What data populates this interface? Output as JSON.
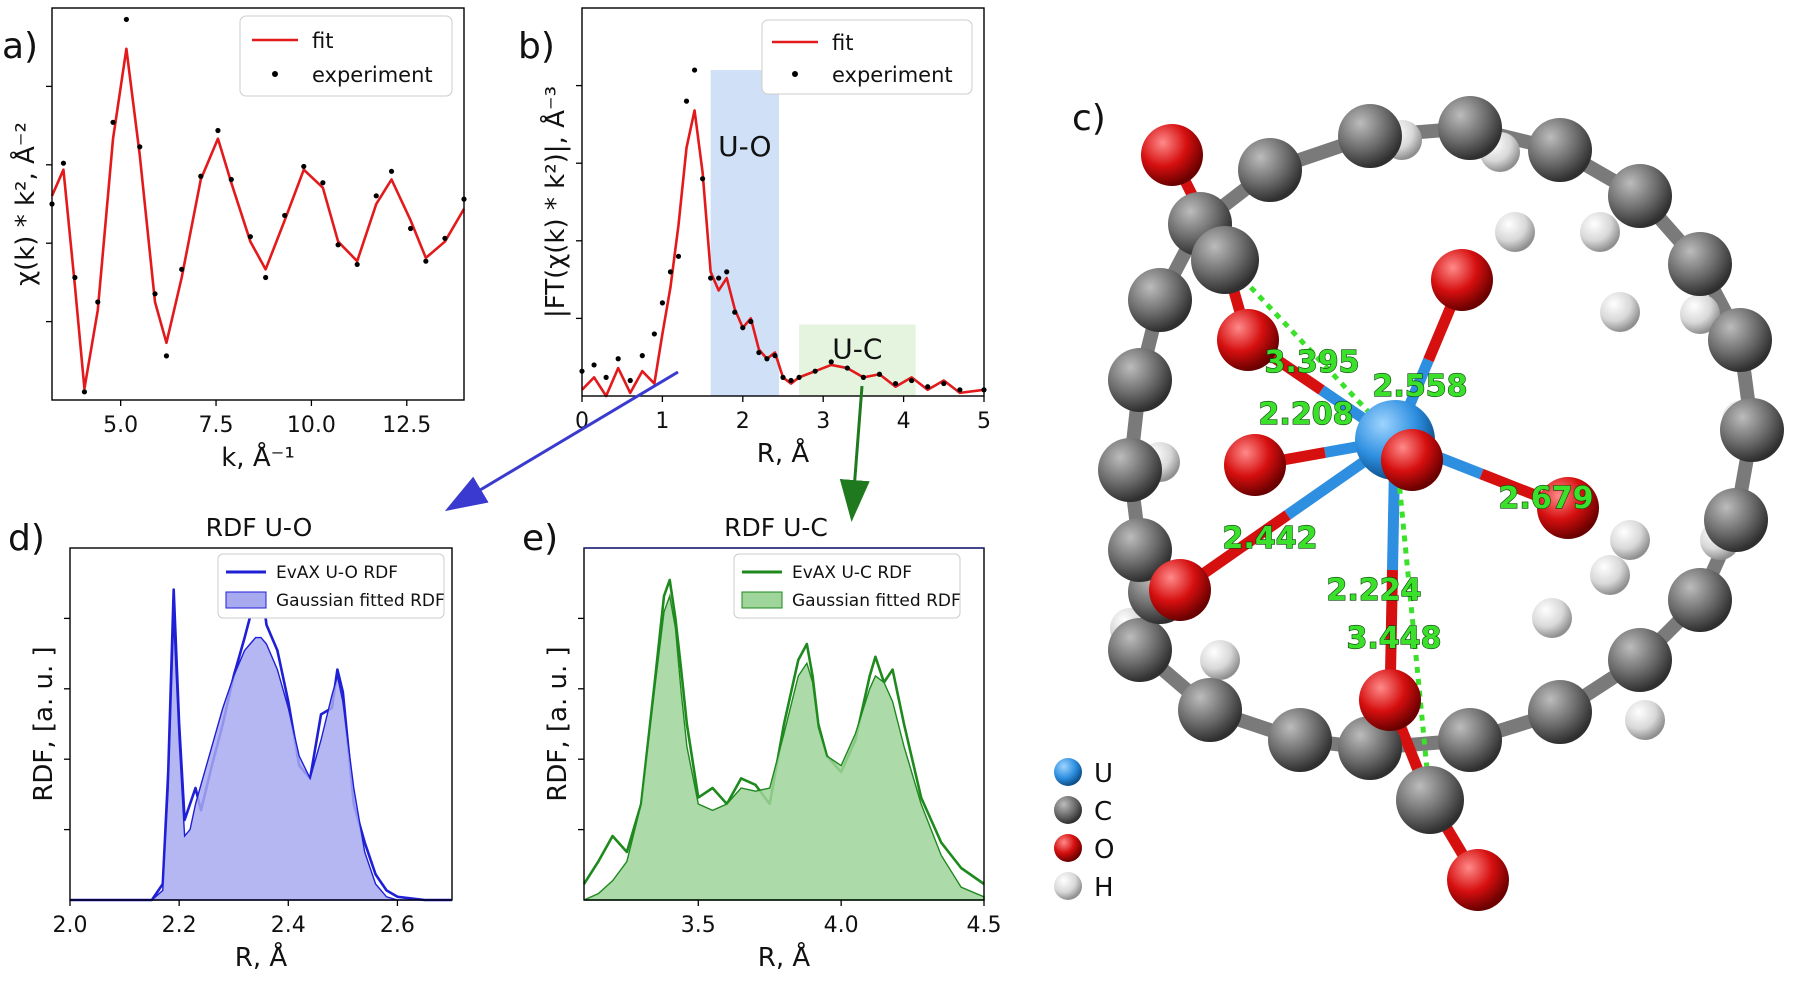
{
  "colors": {
    "fit": "#e31a1c",
    "experiment": "#000000",
    "uo": "#1f1fd6",
    "uo_fill": "#a8aaf0",
    "uc": "#1e8a1e",
    "uc_fill": "#9fd49a",
    "shade_uo": "#cfe0f7",
    "shade_uc": "#e4f4df",
    "arrow_uo": "#3a3ad0",
    "arrow_uc": "#1f7a1f",
    "atom_U": "#2e8fe0",
    "atom_C": "#6a6a6a",
    "atom_O": "#d60f0f",
    "atom_H": "#dcdcdc",
    "distance_label": "#3be02a"
  },
  "panels": {
    "a": {
      "label": "a)"
    },
    "b": {
      "label": "b)"
    },
    "c": {
      "label": "c)"
    },
    "d": {
      "label": "d)"
    },
    "e": {
      "label": "e)"
    }
  },
  "chart_data": [
    {
      "id": "a",
      "type": "line",
      "xlabel": "k, Å⁻¹",
      "ylabel": "χ(k) * k², Å⁻²",
      "xlim": [
        3.2,
        14.0
      ],
      "ylim": [
        -1.15,
        1.25
      ],
      "xticks": [
        5.0,
        7.5,
        10.0,
        12.5
      ],
      "xtick_labels": [
        "5.0",
        "7.5",
        "10.0",
        "12.5"
      ],
      "ytick_labels_shown": false,
      "legend": {
        "placement": "top-right",
        "entries": [
          "fit",
          "experiment"
        ]
      },
      "series": [
        {
          "name": "fit",
          "style": "line",
          "x": [
            3.2,
            3.5,
            3.8,
            4.05,
            4.4,
            4.8,
            5.15,
            5.5,
            5.9,
            6.2,
            6.6,
            7.1,
            7.55,
            7.9,
            8.4,
            8.8,
            9.3,
            9.8,
            10.3,
            10.7,
            11.2,
            11.7,
            12.1,
            12.6,
            13.0,
            13.5,
            14.0
          ],
          "y": [
            0.1,
            0.26,
            -0.45,
            -1.08,
            -0.6,
            0.45,
            1.0,
            0.35,
            -0.55,
            -0.8,
            -0.4,
            0.2,
            0.45,
            0.18,
            -0.18,
            -0.35,
            -0.05,
            0.26,
            0.15,
            -0.18,
            -0.3,
            0.05,
            0.2,
            -0.05,
            -0.28,
            -0.18,
            0.02
          ]
        },
        {
          "name": "experiment",
          "style": "scatter",
          "x": [
            3.2,
            3.5,
            3.8,
            4.05,
            4.4,
            4.8,
            5.15,
            5.5,
            5.9,
            6.2,
            6.6,
            7.1,
            7.55,
            7.9,
            8.4,
            8.8,
            9.3,
            9.8,
            10.3,
            10.7,
            11.2,
            11.7,
            12.1,
            12.6,
            13.0,
            13.5,
            14.0
          ],
          "y": [
            0.05,
            0.3,
            -0.4,
            -1.1,
            -0.55,
            0.55,
            1.18,
            0.4,
            -0.5,
            -0.88,
            -0.35,
            0.22,
            0.5,
            0.2,
            -0.15,
            -0.4,
            -0.02,
            0.28,
            0.18,
            -0.2,
            -0.32,
            0.1,
            0.25,
            -0.1,
            -0.3,
            -0.16,
            0.08
          ]
        }
      ]
    },
    {
      "id": "b",
      "type": "line",
      "xlabel": "R, Å",
      "ylabel": "|FT(χ(k) * k²)|, Å⁻³",
      "xlim": [
        0,
        5
      ],
      "ylim": [
        0,
        1.25
      ],
      "xticks": [
        0,
        1,
        2,
        3,
        4,
        5
      ],
      "xtick_labels": [
        "0",
        "1",
        "2",
        "3",
        "4",
        "5"
      ],
      "ytick_labels_shown": false,
      "legend": {
        "placement": "top-right",
        "entries": [
          "fit",
          "experiment"
        ]
      },
      "shaded_regions": [
        {
          "label": "U-O",
          "x0": 1.6,
          "x1": 2.45,
          "y1": 1.05
        },
        {
          "label": "U-C",
          "x0": 2.7,
          "x1": 4.15,
          "y1": 0.23
        }
      ],
      "series": [
        {
          "name": "fit",
          "style": "line",
          "x": [
            0,
            0.15,
            0.3,
            0.45,
            0.6,
            0.75,
            0.9,
            1.0,
            1.1,
            1.2,
            1.3,
            1.4,
            1.5,
            1.6,
            1.7,
            1.8,
            1.9,
            2.0,
            2.1,
            2.2,
            2.3,
            2.4,
            2.5,
            2.6,
            2.7,
            2.9,
            3.1,
            3.3,
            3.5,
            3.7,
            3.9,
            4.1,
            4.3,
            4.5,
            4.7,
            5.0
          ],
          "y": [
            0.02,
            0.06,
            0.0,
            0.09,
            0.01,
            0.08,
            0.04,
            0.2,
            0.35,
            0.55,
            0.8,
            0.92,
            0.72,
            0.4,
            0.34,
            0.38,
            0.28,
            0.22,
            0.25,
            0.15,
            0.12,
            0.14,
            0.06,
            0.04,
            0.06,
            0.08,
            0.1,
            0.09,
            0.06,
            0.07,
            0.03,
            0.06,
            0.02,
            0.05,
            0.01,
            0.02
          ]
        },
        {
          "name": "experiment",
          "style": "scatter",
          "x": [
            0,
            0.15,
            0.3,
            0.45,
            0.6,
            0.75,
            0.9,
            1.0,
            1.1,
            1.2,
            1.3,
            1.4,
            1.5,
            1.6,
            1.7,
            1.8,
            1.9,
            2.0,
            2.1,
            2.2,
            2.3,
            2.4,
            2.5,
            2.6,
            2.7,
            2.9,
            3.1,
            3.3,
            3.5,
            3.7,
            3.9,
            4.1,
            4.3,
            4.5,
            4.7,
            5.0
          ],
          "y": [
            0.08,
            0.1,
            0.06,
            0.12,
            0.05,
            0.13,
            0.2,
            0.3,
            0.4,
            0.45,
            0.95,
            1.05,
            0.7,
            0.38,
            0.38,
            0.4,
            0.27,
            0.22,
            0.24,
            0.14,
            0.12,
            0.13,
            0.06,
            0.05,
            0.06,
            0.08,
            0.11,
            0.09,
            0.06,
            0.07,
            0.04,
            0.05,
            0.03,
            0.04,
            0.02,
            0.02
          ]
        }
      ]
    },
    {
      "id": "d",
      "type": "area",
      "title": "RDF U-O",
      "xlabel": "R, Å",
      "ylabel": "RDF, [a. u. ]",
      "xlim": [
        2.0,
        2.7
      ],
      "ylim": [
        0,
        1.1
      ],
      "xticks": [
        2.0,
        2.2,
        2.4,
        2.6
      ],
      "xtick_labels": [
        "2.0",
        "2.2",
        "2.4",
        "2.6"
      ],
      "ytick_labels_shown": false,
      "legend": {
        "placement": "top-right",
        "entries": [
          "EvAX U-O RDF",
          "Gaussian fitted RDF"
        ]
      },
      "series": [
        {
          "name": "EvAX U-O RDF",
          "style": "line",
          "x": [
            2.0,
            2.15,
            2.17,
            2.18,
            2.19,
            2.2,
            2.21,
            2.22,
            2.23,
            2.24,
            2.26,
            2.28,
            2.3,
            2.32,
            2.34,
            2.35,
            2.36,
            2.38,
            2.4,
            2.42,
            2.44,
            2.46,
            2.48,
            2.49,
            2.5,
            2.52,
            2.54,
            2.56,
            2.58,
            2.6,
            2.65,
            2.7
          ],
          "y": [
            0.0,
            0.0,
            0.05,
            0.4,
            0.97,
            0.55,
            0.25,
            0.3,
            0.35,
            0.28,
            0.42,
            0.55,
            0.7,
            0.82,
            0.95,
            1.0,
            0.86,
            0.78,
            0.62,
            0.42,
            0.38,
            0.58,
            0.6,
            0.72,
            0.65,
            0.3,
            0.18,
            0.08,
            0.03,
            0.01,
            0.0,
            0.0
          ]
        },
        {
          "name": "Gaussian fitted RDF",
          "style": "filled",
          "x": [
            2.0,
            2.15,
            2.17,
            2.18,
            2.19,
            2.2,
            2.21,
            2.22,
            2.23,
            2.24,
            2.26,
            2.28,
            2.3,
            2.32,
            2.34,
            2.35,
            2.36,
            2.38,
            2.4,
            2.42,
            2.44,
            2.46,
            2.48,
            2.49,
            2.5,
            2.52,
            2.54,
            2.56,
            2.58,
            2.6,
            2.65,
            2.7
          ],
          "y": [
            0.0,
            0.0,
            0.03,
            0.35,
            0.88,
            0.5,
            0.2,
            0.22,
            0.3,
            0.36,
            0.48,
            0.6,
            0.7,
            0.78,
            0.82,
            0.82,
            0.8,
            0.72,
            0.6,
            0.45,
            0.38,
            0.5,
            0.64,
            0.7,
            0.62,
            0.35,
            0.15,
            0.05,
            0.01,
            0.0,
            0.0,
            0.0
          ]
        }
      ]
    },
    {
      "id": "e",
      "type": "area",
      "title": "RDF U-C",
      "xlabel": "R, Å",
      "ylabel": "RDF, [a. u. ]",
      "xlim": [
        3.1,
        4.5
      ],
      "ylim": [
        0,
        1.1
      ],
      "xticks": [
        3.5,
        4.0,
        4.5
      ],
      "xtick_labels": [
        "3.5",
        "4.0",
        "4.5"
      ],
      "ytick_labels_shown": false,
      "legend": {
        "placement": "top-right",
        "entries": [
          "EvAX U-C RDF",
          "Gaussian fitted RDF"
        ]
      },
      "series": [
        {
          "name": "EvAX U-C RDF",
          "style": "line",
          "x": [
            3.1,
            3.15,
            3.2,
            3.25,
            3.3,
            3.35,
            3.38,
            3.4,
            3.42,
            3.44,
            3.46,
            3.5,
            3.55,
            3.6,
            3.65,
            3.7,
            3.75,
            3.8,
            3.85,
            3.88,
            3.9,
            3.92,
            3.95,
            4.0,
            4.05,
            4.1,
            4.12,
            4.15,
            4.18,
            4.22,
            4.28,
            4.35,
            4.42,
            4.5
          ],
          "y": [
            0.05,
            0.12,
            0.2,
            0.15,
            0.3,
            0.7,
            0.95,
            1.0,
            0.88,
            0.72,
            0.55,
            0.32,
            0.35,
            0.3,
            0.38,
            0.36,
            0.3,
            0.55,
            0.75,
            0.8,
            0.7,
            0.55,
            0.45,
            0.4,
            0.5,
            0.7,
            0.76,
            0.68,
            0.72,
            0.55,
            0.32,
            0.18,
            0.1,
            0.05
          ]
        },
        {
          "name": "Gaussian fitted RDF",
          "style": "filled",
          "x": [
            3.1,
            3.15,
            3.2,
            3.25,
            3.3,
            3.35,
            3.38,
            3.4,
            3.42,
            3.44,
            3.46,
            3.5,
            3.55,
            3.6,
            3.65,
            3.7,
            3.75,
            3.8,
            3.85,
            3.88,
            3.9,
            3.92,
            3.95,
            4.0,
            4.05,
            4.1,
            4.12,
            4.15,
            4.18,
            4.22,
            4.28,
            4.35,
            4.42,
            4.5
          ],
          "y": [
            0.0,
            0.02,
            0.06,
            0.12,
            0.3,
            0.68,
            0.9,
            0.95,
            0.85,
            0.65,
            0.48,
            0.3,
            0.28,
            0.3,
            0.35,
            0.34,
            0.35,
            0.52,
            0.7,
            0.74,
            0.68,
            0.54,
            0.45,
            0.42,
            0.52,
            0.66,
            0.7,
            0.68,
            0.62,
            0.48,
            0.3,
            0.14,
            0.04,
            0.01
          ]
        }
      ]
    }
  ],
  "molecule": {
    "legend": [
      {
        "element": "U",
        "color": "#2e8fe0"
      },
      {
        "element": "C",
        "color": "#6a6a6a"
      },
      {
        "element": "O",
        "color": "#d60f0f"
      },
      {
        "element": "H",
        "color": "#dcdcdc"
      }
    ],
    "distances": [
      "3.395",
      "2.208",
      "2.558",
      "2.679",
      "2.442",
      "2.224",
      "3.448"
    ]
  }
}
